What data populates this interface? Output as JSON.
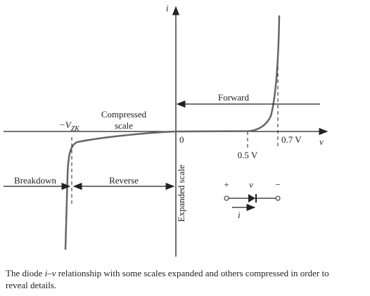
{
  "axes": {
    "y_label": "i",
    "x_label": "v",
    "origin": "0"
  },
  "labels": {
    "forward": "Forward",
    "compressed": [
      "Compressed",
      "scale"
    ],
    "vzk": "−V",
    "vzk_sub": "ZK",
    "v05": "0.5 V",
    "v07": "0.7 V",
    "breakdown": "Breakdown",
    "reverse": "Reverse",
    "expanded": "Expanded scale"
  },
  "diode": {
    "plus": "+",
    "v": "v",
    "minus": "−",
    "i": "i"
  },
  "caption": {
    "lead": "The diode ",
    "iv": "i–v",
    "rest": " relationship with some scales expanded and others compressed in order to",
    "line2": "reveal details."
  }
}
